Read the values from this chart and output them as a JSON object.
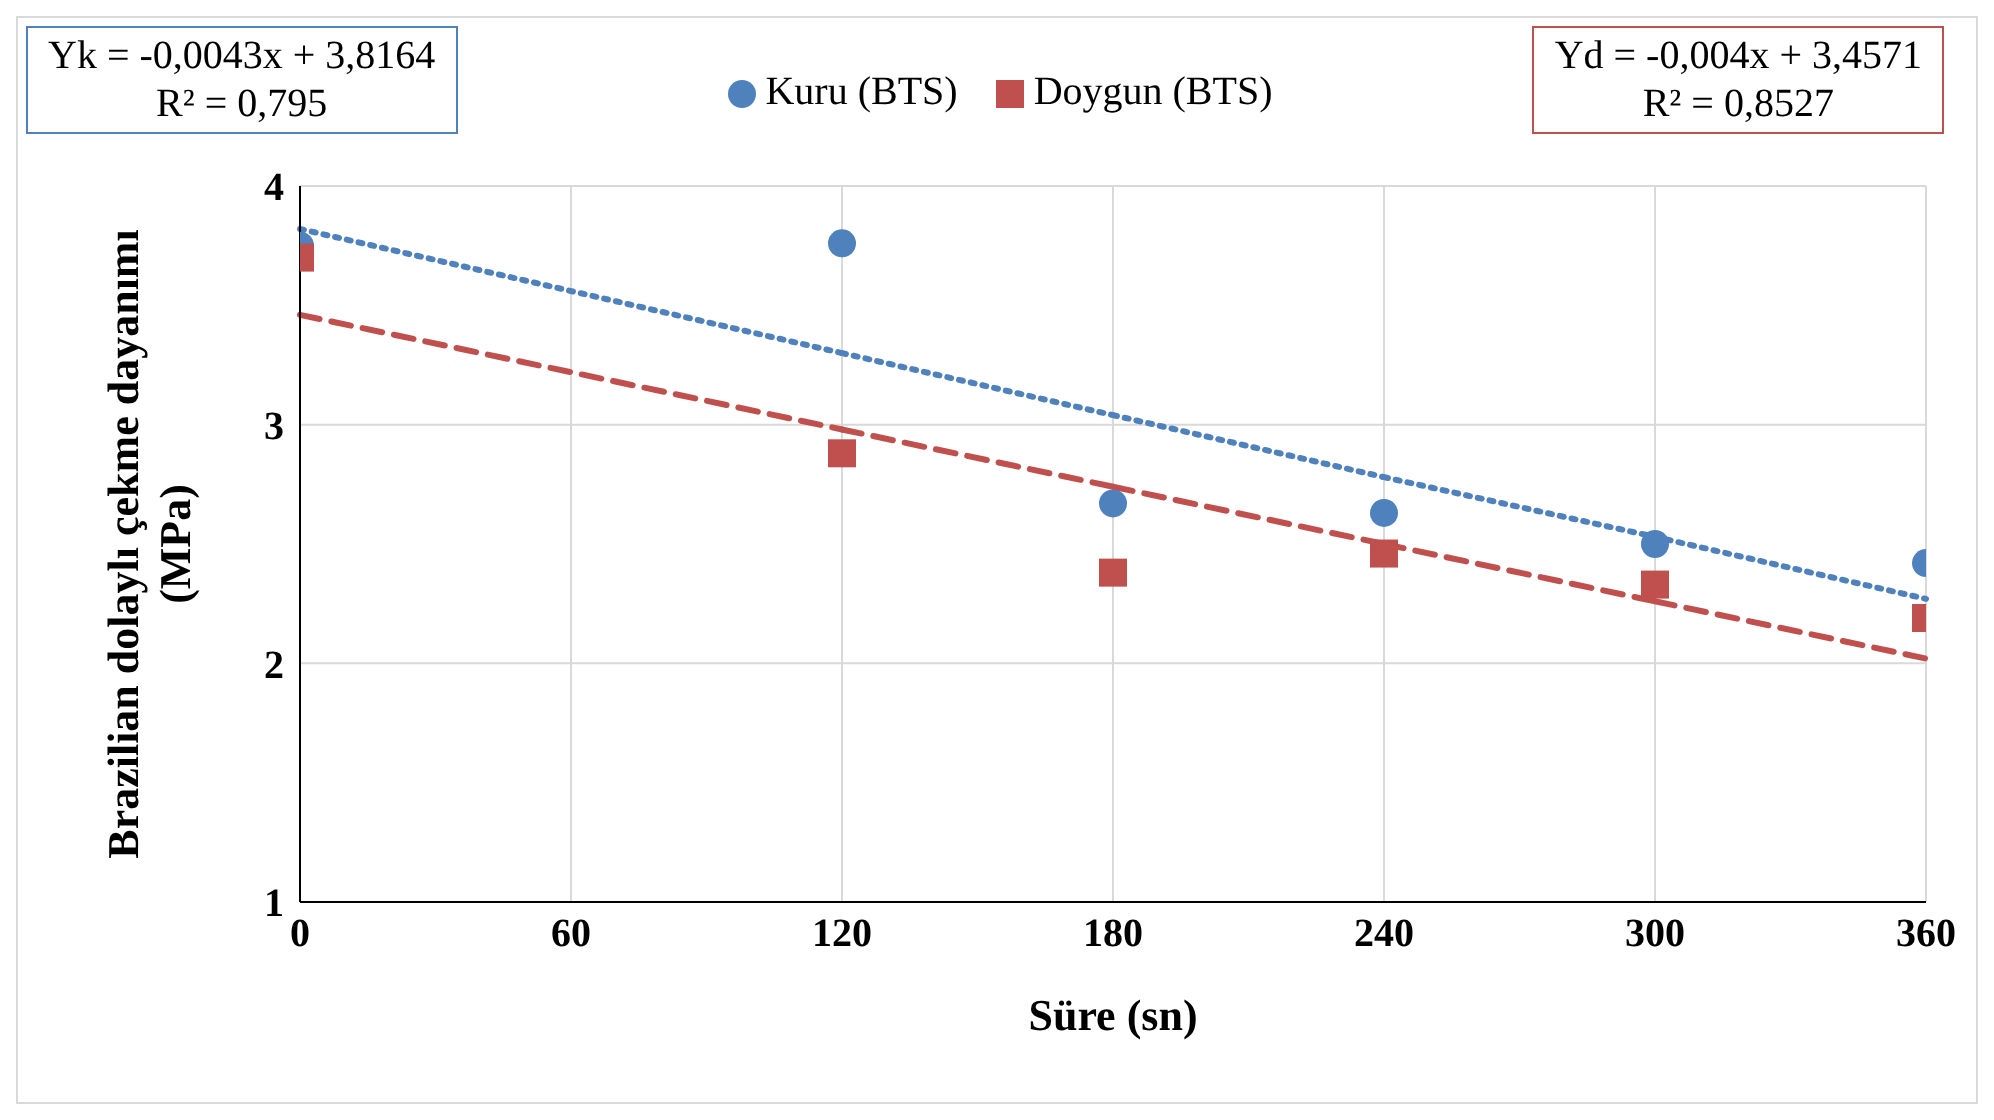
{
  "chart_data": {
    "type": "scatter",
    "xlabel": "Süre (sn)",
    "ylabel": "Brazilian dolaylı çekme dayanımı (MPa)",
    "x": [
      0,
      120,
      180,
      240,
      300,
      360
    ],
    "series": [
      {
        "name": "Kuru (BTS)",
        "color": "#4f81bd",
        "marker": "circle",
        "values": [
          3.75,
          3.76,
          2.67,
          2.63,
          2.5,
          2.42
        ]
      },
      {
        "name": "Doygun (BTS)",
        "color": "#c0504d",
        "marker": "square",
        "values": [
          3.7,
          2.88,
          2.38,
          2.46,
          2.33,
          2.19
        ]
      },
      {
        "type": "line",
        "color": "#4f81bd",
        "marker": "none",
        "line_style": "dotted",
        "values": [
          3.82,
          3.3,
          3.04,
          2.78,
          2.53,
          2.27
        ]
      },
      {
        "type": "line",
        "color": "#c0504d",
        "marker": "none",
        "line_style": "dashed",
        "values": [
          3.46,
          2.98,
          2.74,
          2.5,
          2.26,
          2.02
        ]
      }
    ],
    "annotations": [
      "Yk = -0,0043x + 3,8164\nR² = 0,795",
      "Yd = -0,004x + 3,4571\nR² = 0,8527"
    ],
    "xlim": [
      0,
      360
    ],
    "xticks": [
      0,
      60,
      120,
      180,
      240,
      300,
      360
    ],
    "ylim": [
      1,
      4
    ],
    "yticks": [
      1,
      2,
      3,
      4
    ],
    "grid": true,
    "legend": "top"
  }
}
